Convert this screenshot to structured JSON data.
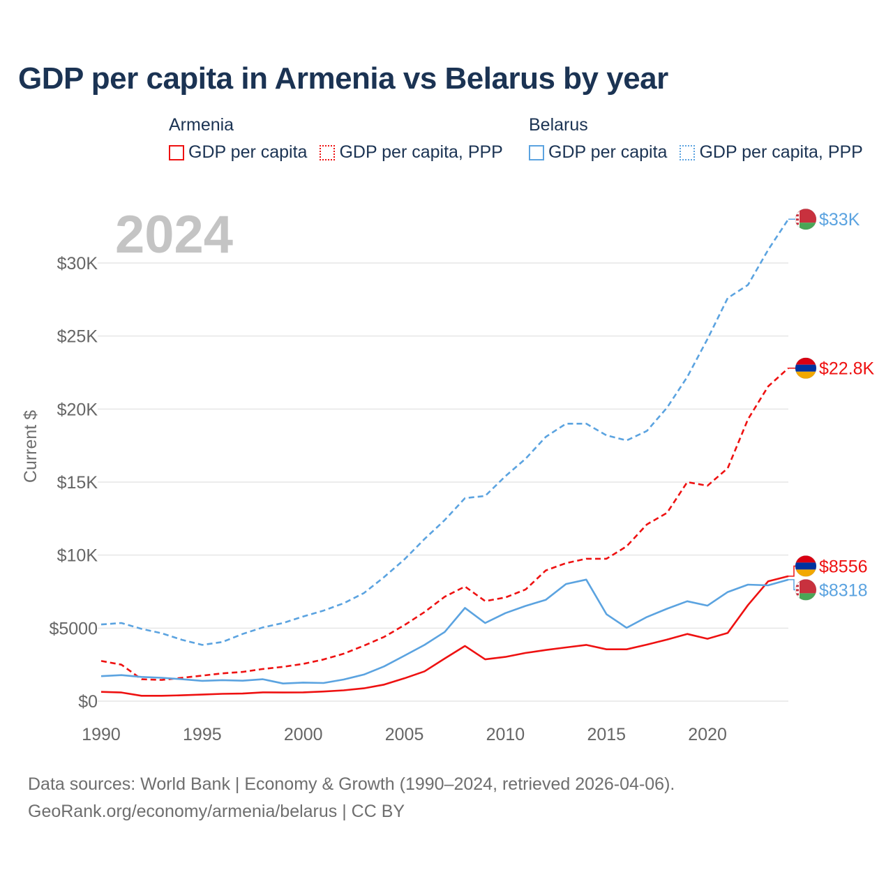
{
  "title": "GDP per capita in Armenia vs Belarus by year",
  "legend": {
    "armenia": {
      "country": "Armenia",
      "gdp_label": "GDP per capita",
      "ppp_label": "GDP per capita, PPP"
    },
    "belarus": {
      "country": "Belarus",
      "gdp_label": "GDP per capita",
      "ppp_label": "GDP per capita, PPP"
    }
  },
  "colors": {
    "armenia": "#ee1111",
    "belarus": "#5ba3e0",
    "grid": "#e6e6e6",
    "axis_text": "#666666"
  },
  "year_watermark": "2024",
  "sources": {
    "line1": "Data sources: World Bank | Economy & Growth (1990–2024, retrieved 2026-04-06).",
    "line2": "GeoRank.org/economy/armenia/belarus | CC BY"
  },
  "chart_data": {
    "type": "line",
    "title": "GDP per capita in Armenia vs Belarus by year",
    "ylabel": "Current $",
    "xlabel": "",
    "xlim": [
      1990,
      2024
    ],
    "ylim": [
      0,
      30000
    ],
    "grid": true,
    "x_ticks": [
      1990,
      1995,
      2000,
      2005,
      2010,
      2015,
      2020
    ],
    "y_ticks": [
      {
        "value": 0,
        "label": "$0"
      },
      {
        "value": 5000,
        "label": "$5000"
      },
      {
        "value": 10000,
        "label": "$10K"
      },
      {
        "value": 15000,
        "label": "$15K"
      },
      {
        "value": 20000,
        "label": "$20K"
      },
      {
        "value": 25000,
        "label": "$25K"
      },
      {
        "value": 30000,
        "label": "$30K"
      }
    ],
    "x": [
      1990,
      1991,
      1992,
      1993,
      1994,
      1995,
      1996,
      1997,
      1998,
      1999,
      2000,
      2001,
      2002,
      2003,
      2004,
      2005,
      2006,
      2007,
      2008,
      2009,
      2010,
      2011,
      2012,
      2013,
      2014,
      2015,
      2016,
      2017,
      2018,
      2019,
      2020,
      2021,
      2022,
      2023,
      2024
    ],
    "series": [
      {
        "name": "Belarus GDP per capita, PPP",
        "country": "Belarus",
        "style": "dashed",
        "end_label": "$33K",
        "values": [
          5250,
          5350,
          4950,
          4650,
          4200,
          3850,
          4050,
          4600,
          5050,
          5350,
          5800,
          6200,
          6700,
          7400,
          8500,
          9700,
          11100,
          12400,
          13900,
          14050,
          15400,
          16600,
          18100,
          19000,
          19000,
          18200,
          17850,
          18500,
          20100,
          22200,
          24800,
          27600,
          28500,
          30900,
          33000
        ]
      },
      {
        "name": "Armenia GDP per capita, PPP",
        "country": "Armenia",
        "style": "dashed",
        "end_label": "$22.8K",
        "values": [
          2750,
          2500,
          1500,
          1450,
          1600,
          1750,
          1900,
          2000,
          2200,
          2350,
          2550,
          2850,
          3250,
          3800,
          4400,
          5200,
          6100,
          7150,
          7850,
          6850,
          7100,
          7650,
          8950,
          9450,
          9750,
          9750,
          10600,
          12100,
          12900,
          15000,
          14750,
          15950,
          19300,
          21550,
          22800
        ]
      },
      {
        "name": "Armenia GDP per capita",
        "country": "Armenia",
        "style": "solid",
        "end_label": "$8556",
        "values": [
          637,
          590,
          366,
          370,
          400,
          450,
          500,
          520,
          600,
          590,
          600,
          660,
          740,
          880,
          1130,
          1560,
          2040,
          2920,
          3780,
          2860,
          3030,
          3300,
          3500,
          3680,
          3850,
          3550,
          3550,
          3870,
          4220,
          4600,
          4270,
          4670,
          6580,
          8200,
          8556
        ]
      },
      {
        "name": "Belarus GDP per capita",
        "country": "Belarus",
        "style": "solid",
        "end_label": "$8318",
        "values": [
          1710,
          1780,
          1660,
          1600,
          1500,
          1390,
          1440,
          1400,
          1500,
          1210,
          1270,
          1240,
          1480,
          1820,
          2380,
          3110,
          3850,
          4740,
          6380,
          5350,
          6030,
          6520,
          6940,
          8020,
          8320,
          5950,
          5020,
          5760,
          6330,
          6840,
          6540,
          7470,
          7980,
          7930,
          8318
        ]
      }
    ]
  }
}
